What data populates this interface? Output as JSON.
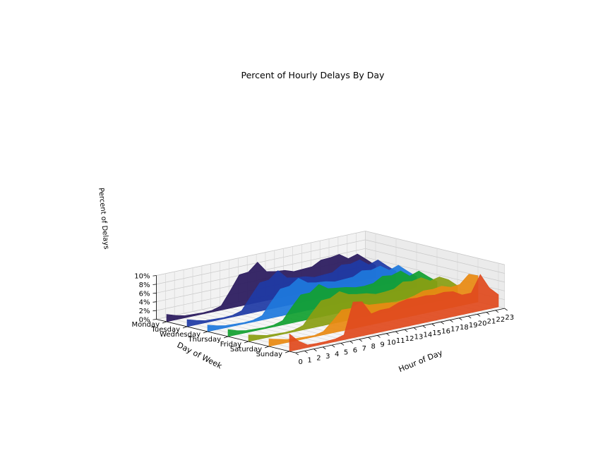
{
  "chart_data": {
    "type": "area",
    "title": "Percent of Hourly Delays By Day",
    "xlabel": "Hour of Day",
    "ylabel": "Day of Week",
    "zlabel": "Percent of Delays",
    "hours": [
      0,
      1,
      2,
      3,
      4,
      5,
      6,
      7,
      8,
      9,
      10,
      11,
      12,
      13,
      14,
      15,
      16,
      17,
      18,
      19,
      20,
      21,
      22,
      23
    ],
    "days": [
      "Monday",
      "Tuesday",
      "Wednesday",
      "Thursday",
      "Friday",
      "Saturday",
      "Sunday"
    ],
    "z_ticks": [
      "0%",
      "2%",
      "4%",
      "6%",
      "8%",
      "10%"
    ],
    "zlim": [
      0,
      10
    ],
    "grid": true,
    "series": [
      {
        "color": "#2a1a5e",
        "values": [
          1.7,
          1.0,
          0.5,
          0.4,
          0.3,
          0.4,
          1.0,
          4.0,
          7.2,
          7.4,
          9.2,
          6.6,
          6.2,
          6.0,
          5.3,
          5.4,
          5.5,
          6.6,
          6.7,
          7.0,
          5.6,
          6.2,
          4.5,
          2.7
        ]
      },
      {
        "color": "#1f3aa5",
        "values": [
          1.6,
          1.0,
          0.5,
          0.4,
          0.3,
          0.4,
          1.0,
          3.8,
          6.5,
          6.7,
          8.4,
          6.3,
          5.9,
          5.7,
          5.1,
          5.2,
          5.3,
          6.6,
          6.4,
          6.9,
          5.3,
          6.0,
          4.2,
          2.5
        ]
      },
      {
        "color": "#1e78dd",
        "values": [
          1.5,
          0.9,
          0.5,
          0.4,
          0.3,
          0.4,
          1.0,
          3.7,
          6.2,
          6.4,
          7.8,
          6.3,
          5.9,
          5.7,
          5.2,
          5.3,
          5.4,
          6.4,
          6.1,
          6.6,
          5.2,
          5.9,
          4.1,
          2.4
        ]
      },
      {
        "color": "#12a030",
        "values": [
          1.6,
          0.9,
          0.5,
          0.4,
          0.3,
          0.4,
          1.0,
          3.6,
          6.0,
          6.0,
          7.5,
          6.1,
          5.8,
          5.5,
          5.0,
          4.9,
          5.1,
          6.3,
          6.0,
          6.6,
          5.0,
          5.7,
          4.0,
          2.4
        ]
      },
      {
        "color": "#8a9e12",
        "values": [
          1.5,
          1.0,
          0.5,
          0.4,
          0.3,
          0.4,
          1.0,
          3.5,
          5.8,
          5.9,
          7.0,
          5.9,
          5.5,
          5.2,
          4.6,
          4.7,
          4.9,
          6.1,
          5.8,
          6.2,
          5.0,
          5.5,
          4.4,
          2.6
        ]
      },
      {
        "color": "#e88a12",
        "values": [
          1.7,
          1.2,
          0.7,
          0.5,
          0.4,
          0.3,
          0.8,
          2.7,
          4.8,
          4.7,
          5.5,
          4.6,
          4.4,
          4.2,
          3.9,
          4.1,
          4.5,
          5.2,
          5.1,
          5.4,
          4.7,
          4.9,
          6.8,
          6.0
        ]
      },
      {
        "color": "#e04a1e",
        "values": [
          4.0,
          1.9,
          0.6,
          0.5,
          0.5,
          0.6,
          1.1,
          8.2,
          7.8,
          4.6,
          5.0,
          5.0,
          5.8,
          6.2,
          6.0,
          6.1,
          5.8,
          6.0,
          5.7,
          4.5,
          4.5,
          8.3,
          4.8,
          2.8
        ]
      }
    ]
  }
}
